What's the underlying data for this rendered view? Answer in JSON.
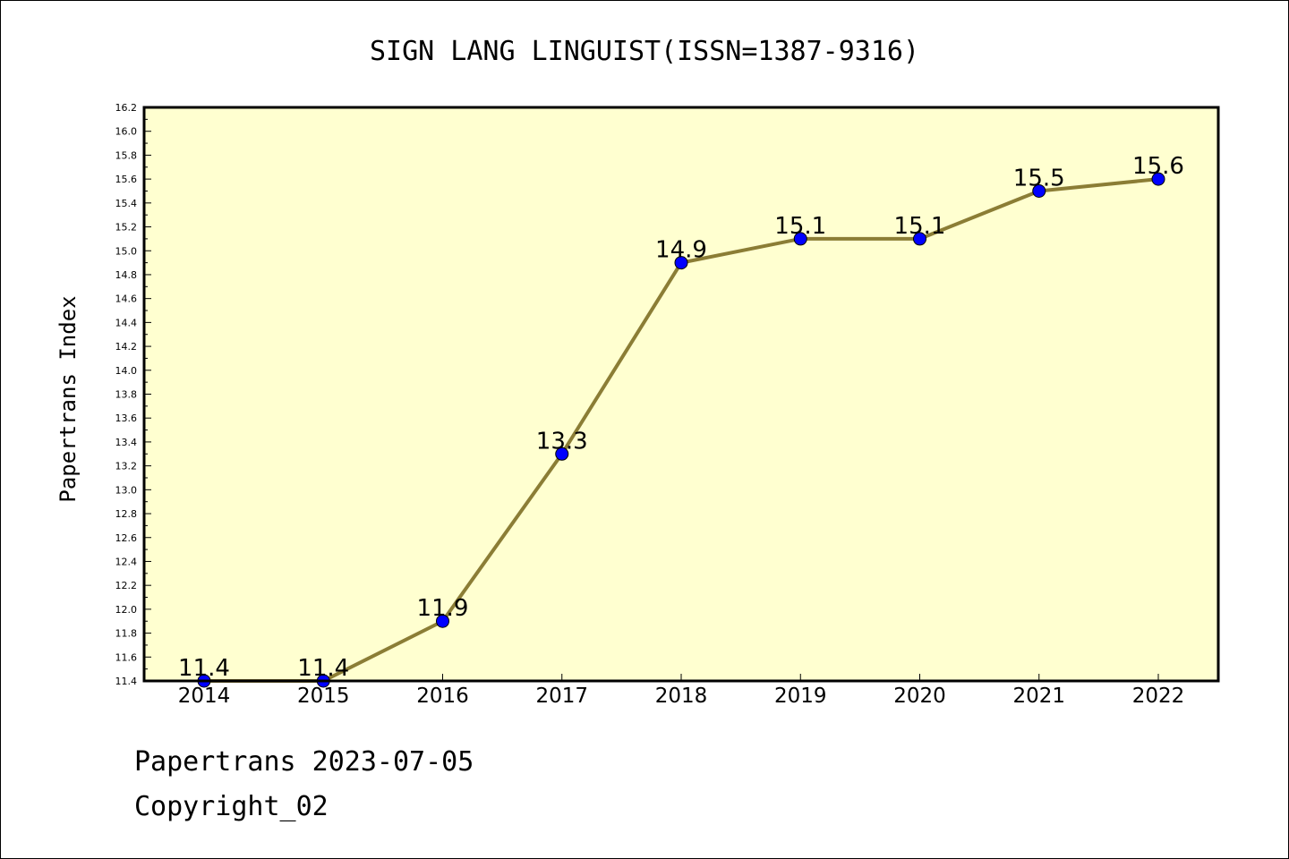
{
  "chart_data": {
    "type": "line",
    "title": "SIGN LANG LINGUIST(ISSN=1387-9316)",
    "xlabel": "",
    "ylabel": "Papertrans Index",
    "categories": [
      "2014",
      "2015",
      "2016",
      "2017",
      "2018",
      "2019",
      "2020",
      "2021",
      "2022"
    ],
    "values": [
      11.4,
      11.4,
      11.9,
      13.3,
      14.9,
      15.1,
      15.1,
      15.5,
      15.6
    ],
    "data_labels": [
      "11.4",
      "11.4",
      "11.9",
      "13.3",
      "14.9",
      "15.1",
      "15.1",
      "15.5",
      "15.6"
    ],
    "ylim": [
      11.4,
      16.2
    ],
    "y_ticks": [
      "11.4",
      "11.6",
      "11.8",
      "12.0",
      "12.2",
      "12.4",
      "12.6",
      "12.8",
      "13.0",
      "13.2",
      "13.4",
      "13.6",
      "13.8",
      "14.0",
      "14.2",
      "14.4",
      "14.6",
      "14.8",
      "15.0",
      "15.2",
      "15.4",
      "15.6",
      "15.8",
      "16.0",
      "16.2"
    ],
    "grid": false,
    "legend": "none",
    "colors": {
      "plot_background": "#ffffd0",
      "line": "#8b7d35",
      "marker": "#0000ff"
    }
  },
  "footer": {
    "source": "Papertrans 2023-07-05",
    "copyright": "Copyright_02"
  }
}
